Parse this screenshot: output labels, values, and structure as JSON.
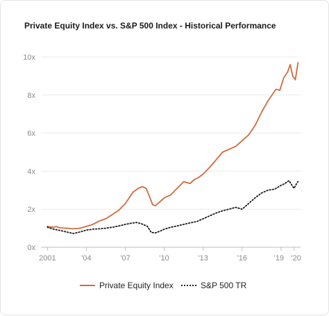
{
  "chart_data": {
    "type": "line",
    "title": "Private Equity Index vs. S&P 500 Index - Historical Performance",
    "xlabel": "",
    "ylabel": "",
    "x_tick_labels": [
      "2001",
      "'04",
      "'07",
      "'10",
      "'13",
      "'16",
      "'19",
      "'20"
    ],
    "x_tick_values": [
      2001,
      2004,
      2007,
      2010,
      2013,
      2016,
      2019,
      2020
    ],
    "y_tick_labels": [
      "0x",
      "2x",
      "4x",
      "6x",
      "8x",
      "10x"
    ],
    "y_tick_values": [
      0,
      2,
      4,
      6,
      8,
      10
    ],
    "xlim": [
      2000.5,
      2020.5
    ],
    "ylim": [
      0,
      10
    ],
    "grid": true,
    "legend_position": "bottom",
    "series": [
      {
        "name": "Private Equity Index",
        "color": "#d2693c",
        "style": "solid",
        "x": [
          2001,
          2001.3,
          2001.7,
          2002,
          2002.5,
          2003,
          2003.5,
          2004,
          2004.5,
          2005,
          2005.5,
          2006,
          2006.5,
          2007,
          2007.3,
          2007.6,
          2008,
          2008.3,
          2008.6,
          2008.9,
          2009.1,
          2009.3,
          2009.6,
          2010,
          2010.5,
          2011,
          2011.5,
          2012,
          2012.3,
          2012.6,
          2013,
          2013.5,
          2014,
          2014.5,
          2015,
          2015.5,
          2016,
          2016.5,
          2017,
          2017.5,
          2018,
          2018.3,
          2018.6,
          2018.9,
          2019.2,
          2019.5,
          2019.7,
          2019.9,
          2020.1,
          2020.3
        ],
        "y": [
          1.1,
          1.05,
          1.08,
          1.02,
          1.0,
          0.97,
          1.0,
          1.1,
          1.2,
          1.38,
          1.5,
          1.72,
          1.95,
          2.3,
          2.6,
          2.9,
          3.1,
          3.18,
          3.1,
          2.6,
          2.25,
          2.18,
          2.35,
          2.6,
          2.75,
          3.1,
          3.45,
          3.35,
          3.55,
          3.65,
          3.85,
          4.2,
          4.6,
          5.0,
          5.15,
          5.3,
          5.6,
          5.9,
          6.4,
          7.1,
          7.7,
          8.0,
          8.3,
          8.25,
          8.9,
          9.2,
          9.6,
          9.0,
          8.8,
          9.7
        ]
      },
      {
        "name": "S&P 500 TR",
        "color": "#1a1a1a",
        "style": "dotted",
        "x": [
          2001,
          2001.5,
          2002,
          2002.5,
          2003,
          2003.5,
          2004,
          2004.5,
          2005,
          2005.5,
          2006,
          2006.5,
          2007,
          2007.5,
          2007.9,
          2008.3,
          2008.7,
          2009.0,
          2009.3,
          2009.7,
          2010,
          2010.5,
          2011,
          2011.5,
          2012,
          2012.5,
          2013,
          2013.5,
          2014,
          2014.5,
          2015,
          2015.5,
          2016,
          2016.5,
          2017,
          2017.5,
          2018,
          2018.5,
          2019,
          2019.3,
          2019.6,
          2019.8,
          2020.0,
          2020.2,
          2020.3
        ],
        "y": [
          1.05,
          0.95,
          0.88,
          0.8,
          0.72,
          0.8,
          0.9,
          0.95,
          0.97,
          1.0,
          1.05,
          1.12,
          1.2,
          1.27,
          1.3,
          1.22,
          1.1,
          0.78,
          0.75,
          0.85,
          0.95,
          1.05,
          1.12,
          1.2,
          1.28,
          1.35,
          1.5,
          1.65,
          1.8,
          1.92,
          2.0,
          2.1,
          2.0,
          2.3,
          2.6,
          2.85,
          3.0,
          3.05,
          3.25,
          3.35,
          3.5,
          3.3,
          3.1,
          3.35,
          3.45
        ]
      }
    ]
  }
}
